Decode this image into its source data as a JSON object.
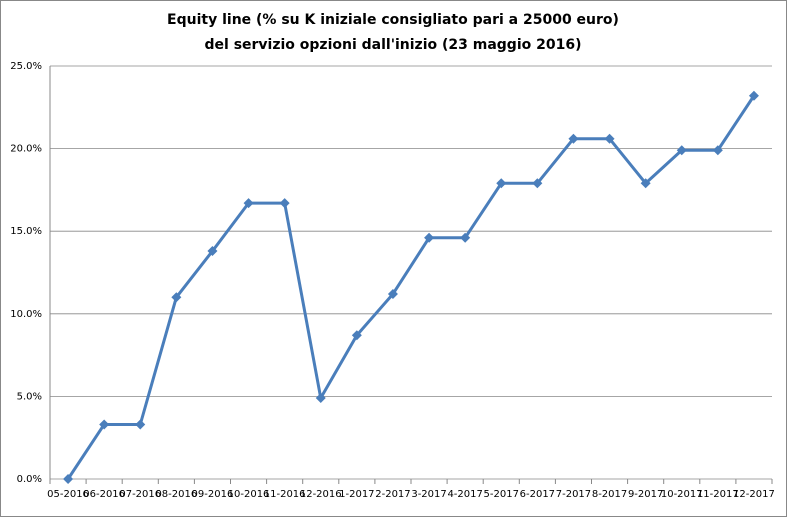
{
  "chart_data": {
    "type": "line",
    "title": [
      "Equity line (% su K iniziale consigliato pari a 25000 euro)",
      "del servizio opzioni dall'inizio (23 maggio 2016)"
    ],
    "categories": [
      "05-2016",
      "06-2016",
      "07-2016",
      "08-2016",
      "09-2016",
      "10-2016",
      "11-2016",
      "12-2016",
      "1-2017",
      "2-2017",
      "3-2017",
      "4-2017",
      "5-2017",
      "6-2017",
      "7-2017",
      "8-2017",
      "9-2017",
      "10-2017",
      "11-2017",
      "12-2017"
    ],
    "values": [
      0,
      3.3,
      3.3,
      11.0,
      13.8,
      16.7,
      16.7,
      4.9,
      8.7,
      11.2,
      14.6,
      14.6,
      17.9,
      17.9,
      20.6,
      20.6,
      17.9,
      19.9,
      19.9,
      23.2
    ],
    "color": "#4a7ebb",
    "ylim": [
      0,
      25
    ],
    "yticks": [
      {
        "value": 0,
        "label": "0.0%"
      },
      {
        "value": 5,
        "label": "5.0%"
      },
      {
        "value": 10,
        "label": "10.0%"
      },
      {
        "value": 15,
        "label": "15.0%"
      },
      {
        "value": 20,
        "label": "20.0%"
      },
      {
        "value": 25,
        "label": "25.0%"
      }
    ],
    "grid": true
  }
}
